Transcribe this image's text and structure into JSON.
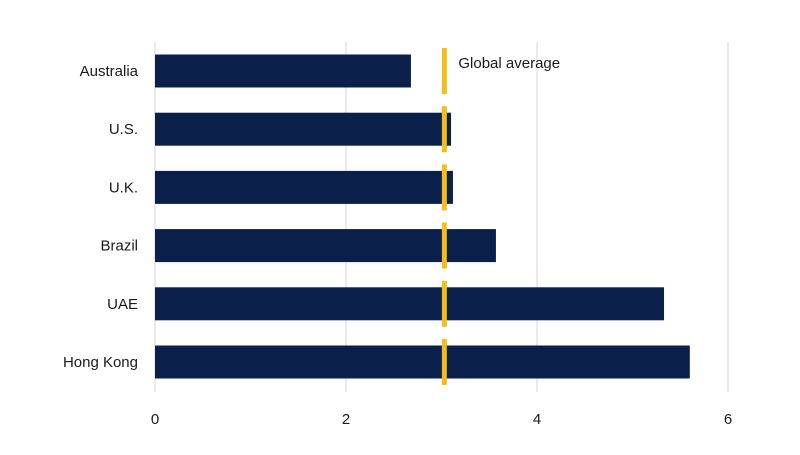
{
  "chart_data": {
    "type": "bar",
    "orientation": "horizontal",
    "categories": [
      "Australia",
      "U.S.",
      "U.K.",
      "Brazil",
      "UAE",
      "Hong Kong"
    ],
    "values": [
      2.68,
      3.1,
      3.12,
      3.57,
      5.33,
      5.6
    ],
    "reference_line": {
      "label": "Global average",
      "value": 3.03,
      "color": "#f2bd1d"
    },
    "xlim": [
      0,
      6
    ],
    "xticks": [
      "0",
      "2",
      "4",
      "6"
    ],
    "xtick_values": [
      0,
      2,
      4,
      6
    ],
    "grid": true,
    "bar_color": "#0b1f4b",
    "title": "",
    "xlabel": "",
    "ylabel": ""
  }
}
